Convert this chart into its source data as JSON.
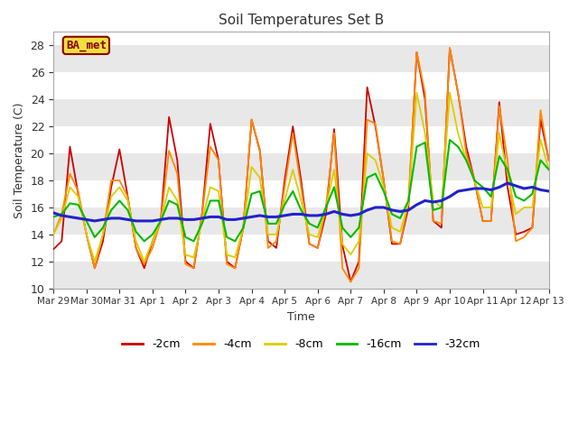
{
  "title": "Soil Temperatures Set B",
  "xlabel": "Time",
  "ylabel": "Soil Temperature (C)",
  "ylim": [
    10,
    29
  ],
  "yticks": [
    10,
    12,
    14,
    16,
    18,
    20,
    22,
    24,
    26,
    28
  ],
  "annotation": "BA_met",
  "fig_bg": "#ffffff",
  "plot_bg": "#ffffff",
  "band_colors": [
    "#e8e8e8",
    "#ffffff"
  ],
  "legend_labels": [
    "-2cm",
    "-4cm",
    "-8cm",
    "-16cm",
    "-32cm"
  ],
  "legend_colors": [
    "#cc0000",
    "#ff8800",
    "#ddcc00",
    "#00bb00",
    "#2222cc"
  ],
  "x_tick_labels": [
    "Mar 29",
    "Mar 30",
    "Mar 31",
    "Apr 1",
    "Apr 2",
    "Apr 3",
    "Apr 4",
    "Apr 5",
    "Apr 6",
    "Apr 7",
    "Apr 8",
    "Apr 9",
    "Apr 10",
    "Apr 11",
    "Apr 12",
    "Apr 13"
  ],
  "x_tick_positions": [
    0,
    4,
    8,
    12,
    16,
    20,
    24,
    28,
    32,
    36,
    40,
    44,
    48,
    52,
    56,
    60
  ],
  "n_points": 61,
  "series": {
    "neg2cm": [
      12.9,
      13.5,
      20.5,
      17.0,
      14.0,
      11.5,
      13.5,
      17.5,
      20.3,
      16.8,
      13.0,
      11.5,
      13.5,
      15.0,
      22.7,
      19.5,
      12.0,
      11.5,
      15.5,
      22.2,
      19.5,
      12.0,
      11.5,
      14.5,
      22.5,
      20.2,
      13.5,
      13.0,
      18.0,
      22.0,
      18.0,
      13.3,
      13.0,
      15.5,
      21.8,
      13.2,
      10.5,
      12.0,
      24.9,
      22.0,
      18.0,
      13.3,
      13.3,
      16.0,
      27.5,
      24.0,
      15.0,
      14.5,
      27.8,
      24.5,
      20.5,
      18.0,
      15.0,
      15.0,
      23.8,
      17.5,
      14.0,
      14.2,
      14.5,
      22.5,
      19.5
    ],
    "neg4cm": [
      14.0,
      15.5,
      18.5,
      17.2,
      14.0,
      11.5,
      14.0,
      18.0,
      18.0,
      16.8,
      13.0,
      11.8,
      13.0,
      15.0,
      20.2,
      18.5,
      11.8,
      11.5,
      15.5,
      20.5,
      19.5,
      11.8,
      11.5,
      14.5,
      22.5,
      20.3,
      13.0,
      13.5,
      17.5,
      21.5,
      17.5,
      13.3,
      13.0,
      16.0,
      21.5,
      11.5,
      10.5,
      11.5,
      22.5,
      22.2,
      18.0,
      13.5,
      13.3,
      16.5,
      27.5,
      24.5,
      15.0,
      14.8,
      27.8,
      24.5,
      20.0,
      18.0,
      15.0,
      15.0,
      23.5,
      19.5,
      13.5,
      13.8,
      14.5,
      23.2,
      19.5
    ],
    "neg8cm": [
      14.0,
      15.2,
      17.5,
      16.8,
      14.0,
      12.0,
      14.0,
      16.8,
      17.5,
      16.5,
      13.5,
      12.0,
      13.5,
      15.0,
      17.5,
      16.5,
      12.5,
      12.3,
      15.0,
      17.5,
      17.2,
      12.5,
      12.3,
      14.5,
      19.0,
      18.2,
      14.0,
      14.0,
      16.5,
      18.8,
      16.5,
      14.0,
      13.8,
      16.0,
      18.8,
      13.3,
      12.5,
      13.5,
      20.0,
      19.5,
      17.5,
      14.5,
      14.2,
      16.3,
      24.5,
      21.5,
      16.5,
      16.0,
      24.5,
      21.5,
      19.5,
      18.0,
      16.0,
      16.0,
      21.5,
      18.5,
      15.5,
      16.0,
      16.0,
      21.0,
      18.8
    ],
    "neg16cm": [
      15.3,
      15.5,
      16.3,
      16.2,
      15.0,
      13.8,
      14.5,
      15.8,
      16.5,
      15.8,
      14.2,
      13.5,
      14.0,
      15.0,
      16.5,
      16.2,
      13.8,
      13.5,
      14.8,
      16.5,
      16.5,
      13.8,
      13.5,
      14.5,
      17.0,
      17.2,
      14.8,
      14.8,
      16.2,
      17.2,
      15.8,
      14.8,
      14.5,
      16.0,
      17.5,
      14.5,
      13.8,
      14.5,
      18.2,
      18.5,
      17.2,
      15.5,
      15.2,
      16.5,
      20.5,
      20.8,
      15.8,
      16.0,
      21.0,
      20.5,
      19.5,
      18.0,
      17.5,
      16.8,
      19.8,
      18.8,
      16.8,
      16.5,
      17.0,
      19.5,
      18.8
    ],
    "neg32cm": [
      15.6,
      15.4,
      15.3,
      15.2,
      15.1,
      15.0,
      15.1,
      15.2,
      15.2,
      15.1,
      15.0,
      15.0,
      15.0,
      15.1,
      15.2,
      15.2,
      15.1,
      15.1,
      15.2,
      15.3,
      15.3,
      15.1,
      15.1,
      15.2,
      15.3,
      15.4,
      15.3,
      15.3,
      15.4,
      15.5,
      15.5,
      15.4,
      15.4,
      15.5,
      15.7,
      15.5,
      15.4,
      15.5,
      15.8,
      16.0,
      16.0,
      15.8,
      15.7,
      15.8,
      16.2,
      16.5,
      16.4,
      16.5,
      16.8,
      17.2,
      17.3,
      17.4,
      17.4,
      17.3,
      17.5,
      17.8,
      17.6,
      17.4,
      17.5,
      17.3,
      17.2
    ]
  }
}
